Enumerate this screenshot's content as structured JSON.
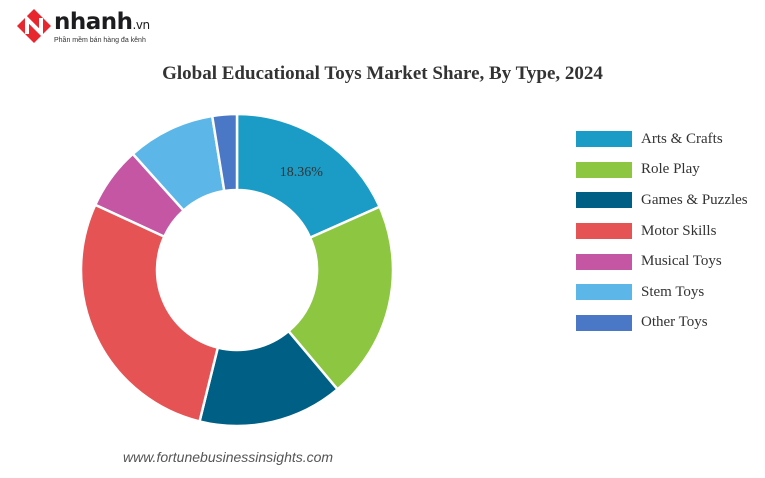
{
  "brand": {
    "name": "nhanh",
    "tld": ".vn",
    "tagline": "Phần mềm bán hàng đa kênh",
    "logo_icon": "n-logo-icon",
    "logo_color": "#e8262d"
  },
  "chart_data": {
    "type": "pie",
    "style": "donut",
    "title": "Global Educational Toys Market Share, By Type, 2024",
    "source": "www.fortunebusinessinsights.com",
    "legend_position": "right",
    "categories": [
      "Arts & Crafts",
      "Role Play",
      "Games & Puzzles",
      "Motor Skills",
      "Musical Toys",
      "Stem Toys",
      "Other Toys"
    ],
    "values": [
      18.36,
      20.5,
      15.0,
      28.0,
      6.5,
      9.1,
      2.54
    ],
    "colors": [
      "#1a9cc7",
      "#8dc641",
      "#005f85",
      "#e55355",
      "#c556a3",
      "#5cb7e8",
      "#4a78c6"
    ],
    "data_labels": [
      {
        "category": "Arts & Crafts",
        "text": "18.36%"
      }
    ]
  }
}
